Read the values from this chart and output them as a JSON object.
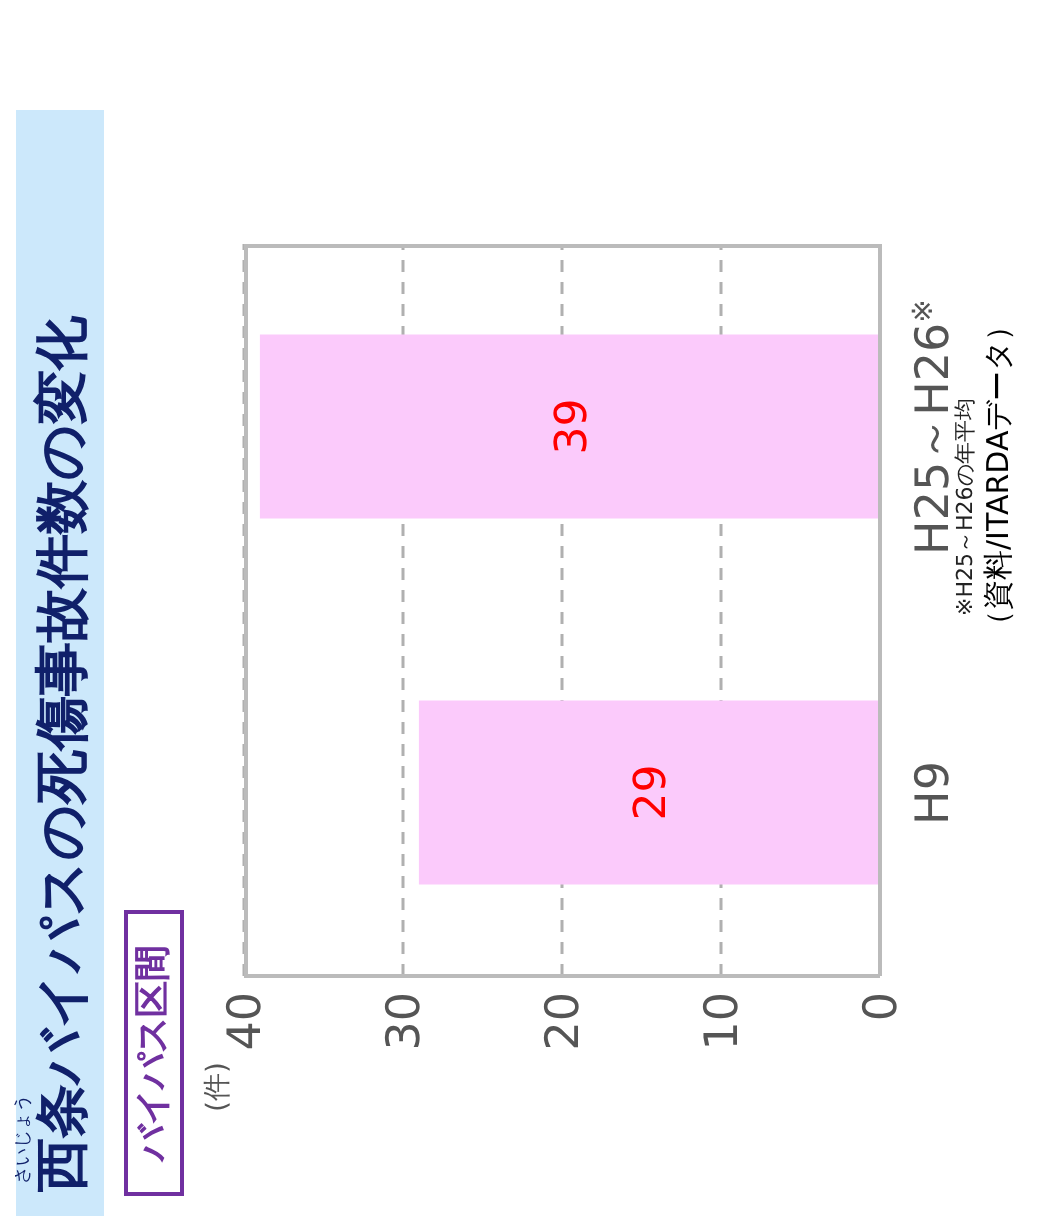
{
  "chart_data": {
    "type": "bar",
    "orientation": "horizontal",
    "title": "西条バイパスの死傷事故件数の変化",
    "subtitle": "バイパス区間",
    "categories": [
      "H25～H26$^{※}$",
      "H9"
    ],
    "values": [
      39,
      29
    ],
    "color": "#fbcafb",
    "data_labels": true,
    "xlim": [
      40,
      0
    ],
    "xticks": [
      40,
      30,
      20,
      10,
      0
    ],
    "grid": "x",
    "annotations": [
      "さいじょう",
      "※H25～H26の年平均",
      "（資料/ITARDAデータ）",
      "(件)"
    ]
  }
}
